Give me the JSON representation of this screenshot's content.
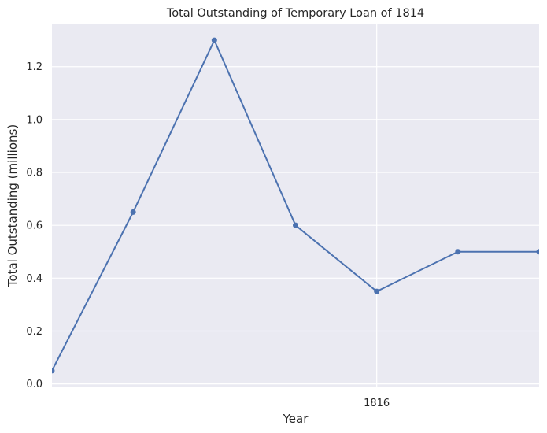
{
  "chart_data": {
    "type": "line",
    "title": "Total Outstanding of Temporary Loan of 1814",
    "xlabel": "Year",
    "ylabel": "Total Outstanding (millions)",
    "x_ticks": [
      {
        "position": 4,
        "label": "1816"
      }
    ],
    "yticks": [
      0.0,
      0.2,
      0.4,
      0.6,
      0.8,
      1.0,
      1.2
    ],
    "ytick_labels": [
      "0.0",
      "0.2",
      "0.4",
      "0.6",
      "0.8",
      "1.0",
      "1.2"
    ],
    "xlim": [
      0,
      6
    ],
    "ylim": [
      -0.01,
      1.36
    ],
    "grid": true,
    "legend": "none",
    "series": [
      {
        "x": [
          0,
          1,
          2,
          3,
          4,
          5,
          6
        ],
        "values": [
          0.05,
          0.65,
          1.3,
          0.6,
          0.35,
          0.5,
          0.5
        ],
        "color": "#4c72b0"
      }
    ],
    "colors": {
      "plot_background": "#eaeaf2",
      "grid": "#ffffff",
      "line": "#4c72b0"
    }
  }
}
